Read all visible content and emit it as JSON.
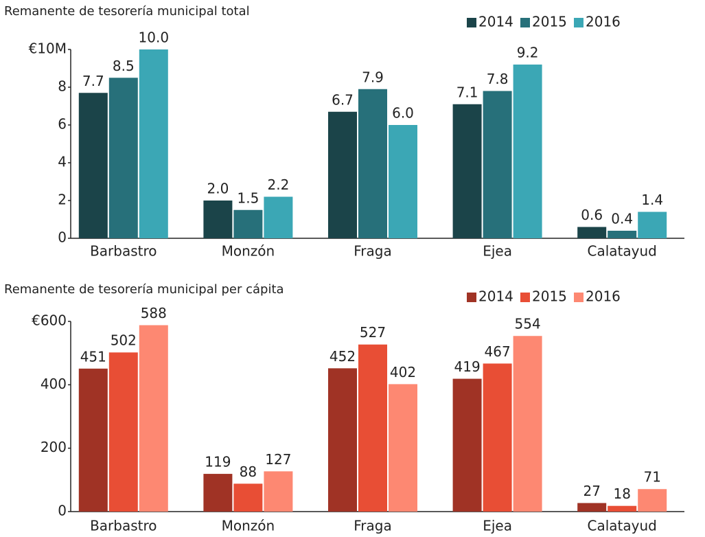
{
  "chart_data": [
    {
      "type": "bar",
      "title": "Remanente de tesorería municipal total",
      "categories": [
        "Barbastro",
        "Monzón",
        "Fraga",
        "Ejea",
        "Calatayud"
      ],
      "series": [
        {
          "name": "2014",
          "color": "#1b4449",
          "values": [
            7.7,
            2.0,
            6.7,
            7.1,
            0.6
          ],
          "value_labels": [
            "7.7",
            "2.0",
            "6.7",
            "7.1",
            "0.6"
          ]
        },
        {
          "name": "2015",
          "color": "#27707a",
          "values": [
            8.5,
            1.5,
            7.9,
            7.8,
            0.4
          ],
          "value_labels": [
            "8.5",
            "1.5",
            "7.9",
            "7.8",
            "0.4"
          ]
        },
        {
          "name": "2016",
          "color": "#3ba7b5",
          "values": [
            10.0,
            2.2,
            6.0,
            9.2,
            1.4
          ],
          "value_labels": [
            "10.0",
            "2.2",
            "6.0",
            "9.2",
            "1.4"
          ]
        }
      ],
      "ylim": [
        0,
        10
      ],
      "yticks": [
        0,
        2,
        4,
        6,
        8,
        {
          "value": 10,
          "label": "€10M"
        }
      ],
      "legend": "top-right"
    },
    {
      "type": "bar",
      "title": "Remanente de tesorería municipal per cápita",
      "categories": [
        "Barbastro",
        "Monzón",
        "Fraga",
        "Ejea",
        "Calatayud"
      ],
      "series": [
        {
          "name": "2014",
          "color": "#a03325",
          "values": [
            451,
            119,
            452,
            419,
            27
          ]
        },
        {
          "name": "2015",
          "color": "#e84e35",
          "values": [
            502,
            88,
            527,
            467,
            18
          ]
        },
        {
          "name": "2016",
          "color": "#fd8872",
          "values": [
            588,
            127,
            402,
            554,
            71
          ]
        }
      ],
      "ylim": [
        0,
        600
      ],
      "yticks": [
        0,
        200,
        400,
        {
          "value": 600,
          "label": "€600"
        }
      ],
      "legend": "top-right"
    }
  ]
}
